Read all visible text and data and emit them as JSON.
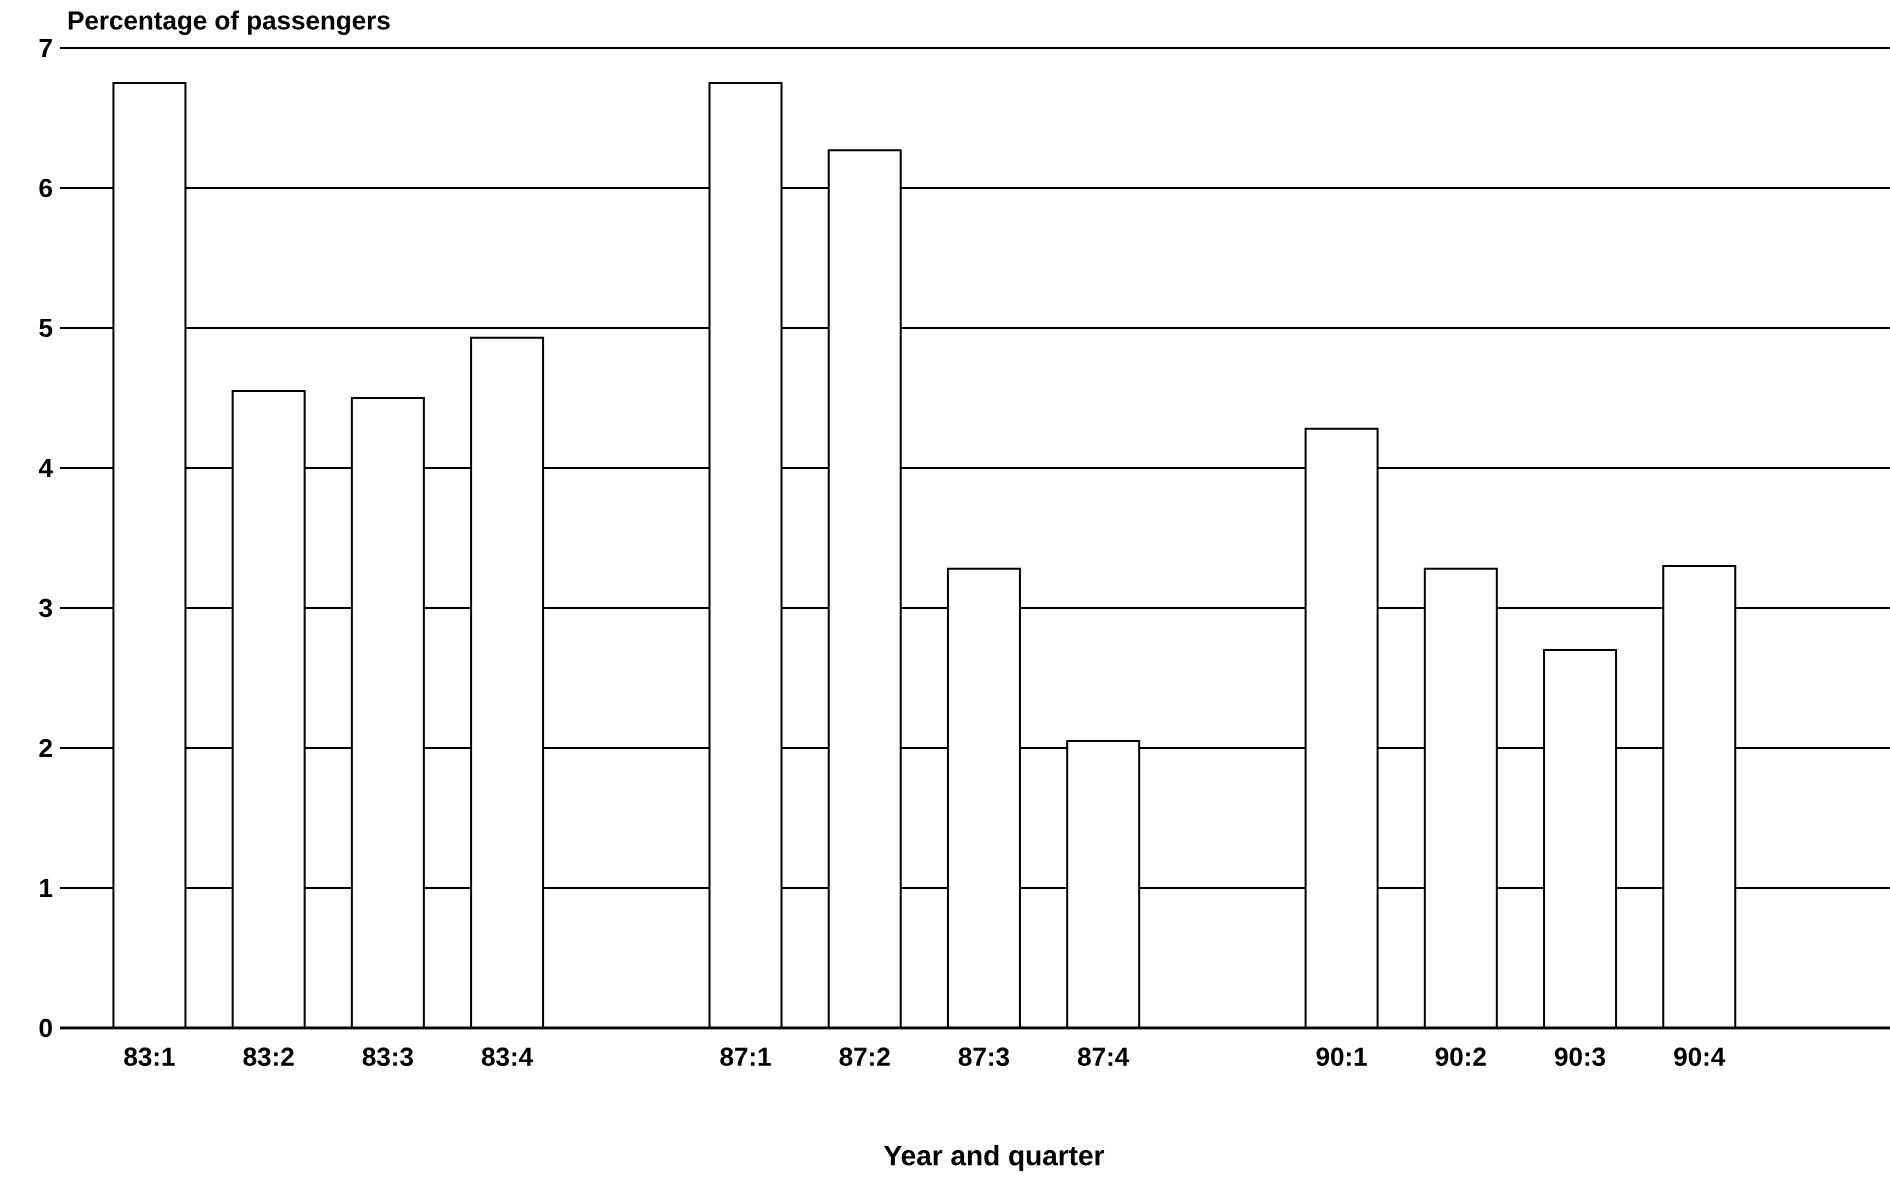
{
  "chart_data": {
    "type": "bar",
    "ylabel": "Percentage of passengers",
    "xlabel": "Year and quarter",
    "categories": [
      "83:1",
      "83:2",
      "83:3",
      "83:4",
      null,
      "87:1",
      "87:2",
      "87:3",
      "87:4",
      null,
      "90:1",
      "90:2",
      "90:3",
      "90:4"
    ],
    "values": [
      6.75,
      4.55,
      4.5,
      4.93,
      null,
      6.75,
      6.27,
      3.28,
      2.05,
      null,
      4.28,
      3.28,
      2.7,
      3.3
    ],
    "color": "#ffffff",
    "ylim": [
      0,
      7
    ],
    "yticks": [
      0,
      1,
      2,
      3,
      4,
      5,
      6,
      7
    ],
    "grid": "y"
  }
}
